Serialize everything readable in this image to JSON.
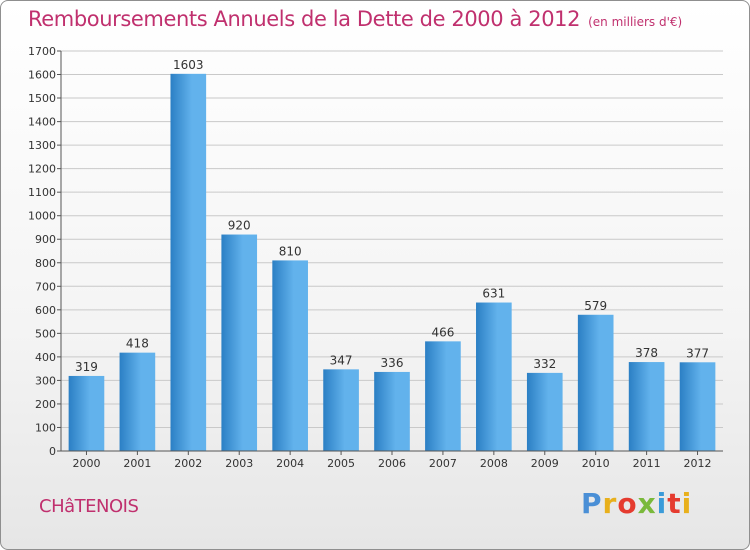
{
  "header": {
    "title": "Remboursements Annuels de la Dette de 2000 à 2012",
    "unit": "(en milliers d'€)"
  },
  "footer": {
    "city": "CHâTENOIS",
    "logo_letters": [
      "P",
      "r",
      "o",
      "x",
      "i",
      "t",
      "i"
    ],
    "logo_colors": [
      "#4a8fd6",
      "#e8b01c",
      "#e53b2f",
      "#7ab93b",
      "#3a9bd9",
      "#e53b2f",
      "#e8b01c"
    ]
  },
  "colors": {
    "bar_dark": "#2b7fc4",
    "bar_light": "#62b2ec",
    "title": "#c0306e",
    "grid": "#c9c9c9"
  },
  "chart_data": {
    "type": "bar",
    "title": "Remboursements Annuels de la Dette de 2000 à 2012",
    "categories": [
      "2000",
      "2001",
      "2002",
      "2003",
      "2004",
      "2005",
      "2006",
      "2007",
      "2008",
      "2009",
      "2010",
      "2011",
      "2012"
    ],
    "values": [
      319,
      418,
      1603,
      920,
      810,
      347,
      336,
      466,
      631,
      332,
      579,
      378,
      377
    ],
    "ylim": [
      0,
      1700
    ],
    "yticks": [
      0,
      100,
      200,
      300,
      400,
      500,
      600,
      700,
      800,
      900,
      1000,
      1100,
      1200,
      1300,
      1400,
      1500,
      1600,
      1700
    ],
    "grid": true,
    "data_labels": true
  }
}
